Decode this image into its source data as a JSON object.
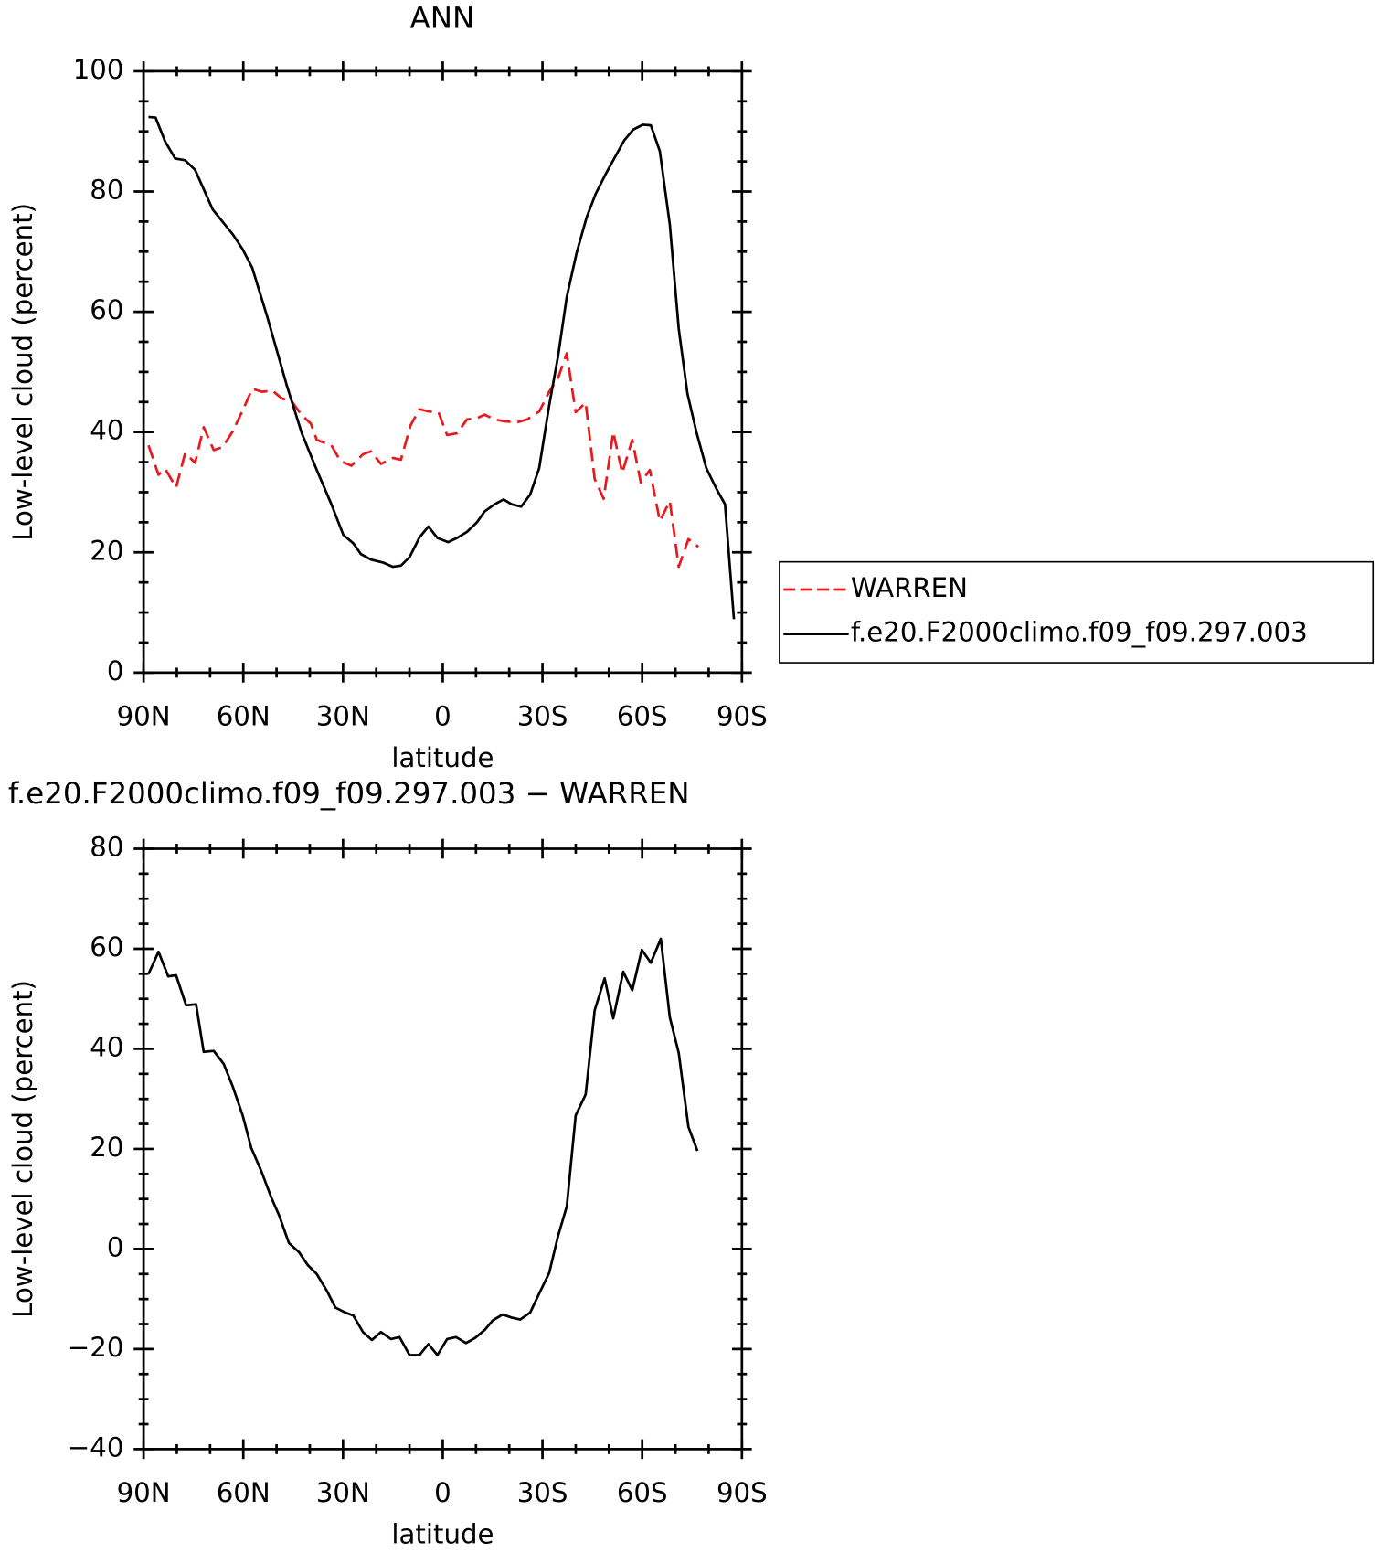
{
  "chart_data": [
    {
      "type": "line",
      "title": "ANN",
      "xlabel": "latitude",
      "ylabel": "Low-level cloud (percent)",
      "xlim": [
        90,
        -90
      ],
      "xticks": [
        {
          "value": 90,
          "label": "90N"
        },
        {
          "value": 60,
          "label": "60N"
        },
        {
          "value": 30,
          "label": "30N"
        },
        0,
        {
          "value": -30,
          "label": "30S"
        },
        {
          "value": -60,
          "label": "60S"
        },
        {
          "value": -90,
          "label": "90S"
        }
      ],
      "minor_xticks": [
        80,
        70,
        50,
        40,
        20,
        10,
        -10,
        -20,
        -40,
        -50,
        -70,
        -80
      ],
      "ylim": [
        0,
        100
      ],
      "yticks": [
        0,
        20,
        40,
        60,
        80,
        100
      ],
      "minor_yticks": [
        5,
        10,
        15,
        25,
        30,
        35,
        45,
        50,
        55,
        65,
        70,
        75,
        85,
        90,
        95
      ],
      "legend": "right",
      "series": [
        {
          "name": "WARREN",
          "color": "#e8191c",
          "dash": true,
          "x": [
            88.5,
            85.5,
            83.5,
            80.2,
            77.5,
            74.5,
            71.9,
            68.9,
            66.2,
            63.2,
            60.2,
            57.3,
            54.3,
            51.3,
            48.4,
            45.4,
            42.4,
            39.7,
            37.9,
            33.5,
            30.8,
            27.5,
            24.0,
            21.6,
            18.6,
            15.0,
            12.6,
            9.7,
            7.0,
            4.0,
            1.3,
            -1.3,
            -4.3,
            -7.3,
            -10.3,
            -12.6,
            -15.6,
            -18.6,
            -22.2,
            -25.4,
            -29.0,
            -32.0,
            -34.7,
            -37.3,
            -40.0,
            -43.0,
            -45.7,
            -48.4,
            -51.3,
            -54.0,
            -57.0,
            -59.6,
            -62.3,
            -65.3,
            -68.3,
            -71.0,
            -73.9,
            -76.9
          ],
          "values": [
            37.8,
            32.9,
            33.9,
            30.8,
            36.5,
            34.9,
            40.8,
            37.0,
            37.5,
            40.1,
            43.6,
            47.2,
            46.7,
            46.9,
            45.6,
            45.1,
            42.8,
            41.4,
            38.7,
            37.8,
            35.2,
            34.4,
            36.3,
            36.8,
            34.7,
            35.7,
            35.4,
            41.1,
            43.8,
            43.4,
            43.3,
            39.5,
            39.8,
            42.1,
            42.3,
            42.9,
            42.1,
            41.8,
            41.6,
            42.1,
            43.4,
            46.7,
            49.0,
            53.1,
            43.3,
            44.9,
            32.2,
            28.9,
            40.0,
            33.2,
            38.7,
            31.6,
            33.7,
            25.2,
            28.5,
            17.6,
            22.2,
            20.9
          ]
        },
        {
          "name": "f.e20.F2000climo.f09_f09.297.003",
          "color": "#000000",
          "dash": false,
          "x": [
            88.5,
            86.4,
            83.5,
            80.5,
            77.5,
            74.5,
            69.2,
            63.2,
            60.2,
            57.3,
            52.8,
            46.9,
            42.4,
            37.9,
            33.5,
            29.9,
            26.9,
            24.6,
            21.6,
            18.0,
            15.0,
            12.6,
            10.0,
            7.0,
            4.3,
            1.6,
            -1.6,
            -4.3,
            -7.3,
            -10.3,
            -12.6,
            -15.6,
            -18.3,
            -20.7,
            -23.6,
            -26.3,
            -29.0,
            -32.0,
            -34.7,
            -37.3,
            -40.3,
            -43.3,
            -46.0,
            -49.0,
            -51.6,
            -54.6,
            -57.3,
            -60.2,
            -62.6,
            -65.3,
            -68.3,
            -71.0,
            -73.6,
            -76.3,
            -79.3,
            -82.3,
            -84.9,
            -87.6
          ],
          "values": [
            92.4,
            92.3,
            88.3,
            85.5,
            85.2,
            83.6,
            77.0,
            72.9,
            70.4,
            67.3,
            59.2,
            47.7,
            39.8,
            33.7,
            28.0,
            22.9,
            21.5,
            19.7,
            18.8,
            18.3,
            17.6,
            17.8,
            19.2,
            22.5,
            24.3,
            22.4,
            21.7,
            22.4,
            23.4,
            25.0,
            26.8,
            28.0,
            28.8,
            28.0,
            27.6,
            29.6,
            34.0,
            44.4,
            52.6,
            62.5,
            69.9,
            75.7,
            79.6,
            82.9,
            85.5,
            88.5,
            90.3,
            91.1,
            91.0,
            86.7,
            74.5,
            57.2,
            46.4,
            40.0,
            34.0,
            30.6,
            28.0,
            8.9
          ]
        }
      ]
    },
    {
      "type": "line",
      "title": "f.e20.F2000climo.f09_f09.297.003 − WARREN",
      "xlabel": "latitude",
      "ylabel": "Low-level cloud (percent)",
      "xlim": [
        90,
        -90
      ],
      "xticks": [
        {
          "value": 90,
          "label": "90N"
        },
        {
          "value": 60,
          "label": "60N"
        },
        {
          "value": 30,
          "label": "30N"
        },
        0,
        {
          "value": -30,
          "label": "30S"
        },
        {
          "value": -60,
          "label": "60S"
        },
        {
          "value": -90,
          "label": "90S"
        }
      ],
      "minor_xticks": [
        80,
        70,
        50,
        40,
        20,
        10,
        -10,
        -20,
        -40,
        -50,
        -70,
        -80
      ],
      "ylim": [
        -40,
        80
      ],
      "yticks": [
        {
          "value": -40,
          "label": "−40"
        },
        {
          "value": -20,
          "label": "−20"
        },
        0,
        20,
        40,
        60,
        80
      ],
      "minor_yticks": [
        -35,
        -30,
        -25,
        -15,
        -10,
        -5,
        5,
        10,
        15,
        25,
        30,
        35,
        45,
        50,
        55,
        65,
        70,
        75
      ],
      "series": [
        {
          "color": "#000000",
          "dash": false,
          "x": [
            88.5,
            85.5,
            82.6,
            80.2,
            77.2,
            74.2,
            71.9,
            68.9,
            65.9,
            63.2,
            60.2,
            57.6,
            54.6,
            51.6,
            49.2,
            46.3,
            43.3,
            40.6,
            37.9,
            34.9,
            32.3,
            29.3,
            26.9,
            24.0,
            21.3,
            18.6,
            15.6,
            13.0,
            10.0,
            7.0,
            4.3,
            1.6,
            -1.3,
            -4.0,
            -7.0,
            -9.7,
            -12.6,
            -15.0,
            -18.0,
            -20.7,
            -23.3,
            -26.3,
            -29.0,
            -32.0,
            -34.7,
            -37.3,
            -40.0,
            -43.0,
            -45.7,
            -48.7,
            -51.3,
            -54.3,
            -57.0,
            -59.9,
            -62.6,
            -65.6,
            -68.3,
            -71.0,
            -73.9,
            -76.6
          ],
          "values": [
            55.0,
            59.4,
            54.5,
            54.7,
            48.7,
            48.9,
            39.4,
            39.6,
            37.0,
            32.5,
            26.7,
            20.2,
            15.6,
            10.3,
            6.7,
            1.2,
            -0.6,
            -3.2,
            -5.0,
            -8.3,
            -11.7,
            -12.7,
            -13.3,
            -16.6,
            -18.2,
            -16.6,
            -18.0,
            -17.6,
            -21.2,
            -21.2,
            -19.0,
            -21.2,
            -18.0,
            -17.6,
            -18.8,
            -17.8,
            -16.2,
            -14.3,
            -13.1,
            -13.7,
            -14.1,
            -12.7,
            -8.9,
            -4.8,
            2.6,
            8.5,
            26.7,
            30.9,
            47.7,
            54.1,
            46.1,
            55.4,
            51.7,
            59.8,
            57.2,
            62.0,
            46.3,
            39.2,
            24.4,
            19.6
          ]
        }
      ]
    }
  ]
}
